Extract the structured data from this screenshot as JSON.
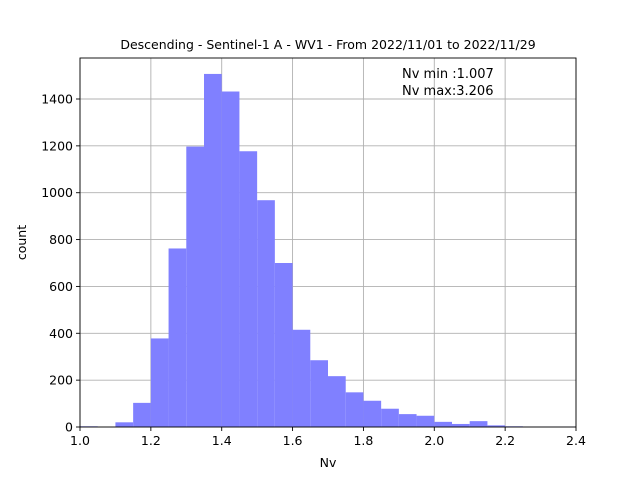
{
  "chart_data": {
    "type": "bar",
    "title": "Descending - Sentinel-1 A - WV1 - From 2022/11/01 to 2022/11/29",
    "xlabel": "Nv",
    "ylabel": "count",
    "xlim": [
      1.0,
      2.4
    ],
    "ylim": [
      0,
      1575
    ],
    "grid": true,
    "xticks": [
      "1.0",
      "1.2",
      "1.4",
      "1.6",
      "1.8",
      "2.0",
      "2.2",
      "2.4"
    ],
    "xtick_values": [
      1.0,
      1.2,
      1.4,
      1.6,
      1.8,
      2.0,
      2.2,
      2.4
    ],
    "yticks": [
      "0",
      "200",
      "400",
      "600",
      "800",
      "1000",
      "1200",
      "1400"
    ],
    "ytick_values": [
      0,
      200,
      400,
      600,
      800,
      1000,
      1200,
      1400
    ],
    "bin_edges": [
      1.0,
      1.05,
      1.1,
      1.15,
      1.2,
      1.25,
      1.3,
      1.35,
      1.4,
      1.45,
      1.5,
      1.55,
      1.6,
      1.65,
      1.7,
      1.75,
      1.8,
      1.85,
      1.9,
      1.95,
      2.0,
      2.05,
      2.1,
      2.15,
      2.2,
      2.25,
      2.3,
      2.35,
      2.4
    ],
    "values": [
      3,
      0,
      20,
      103,
      378,
      762,
      1197,
      1507,
      1432,
      1177,
      968,
      700,
      415,
      285,
      217,
      148,
      112,
      78,
      55,
      48,
      22,
      13,
      25,
      7,
      3,
      1,
      1,
      1
    ],
    "color": "#8080ff",
    "annotations": [
      "Nv min :1.007",
      "Nv max:3.206"
    ]
  }
}
